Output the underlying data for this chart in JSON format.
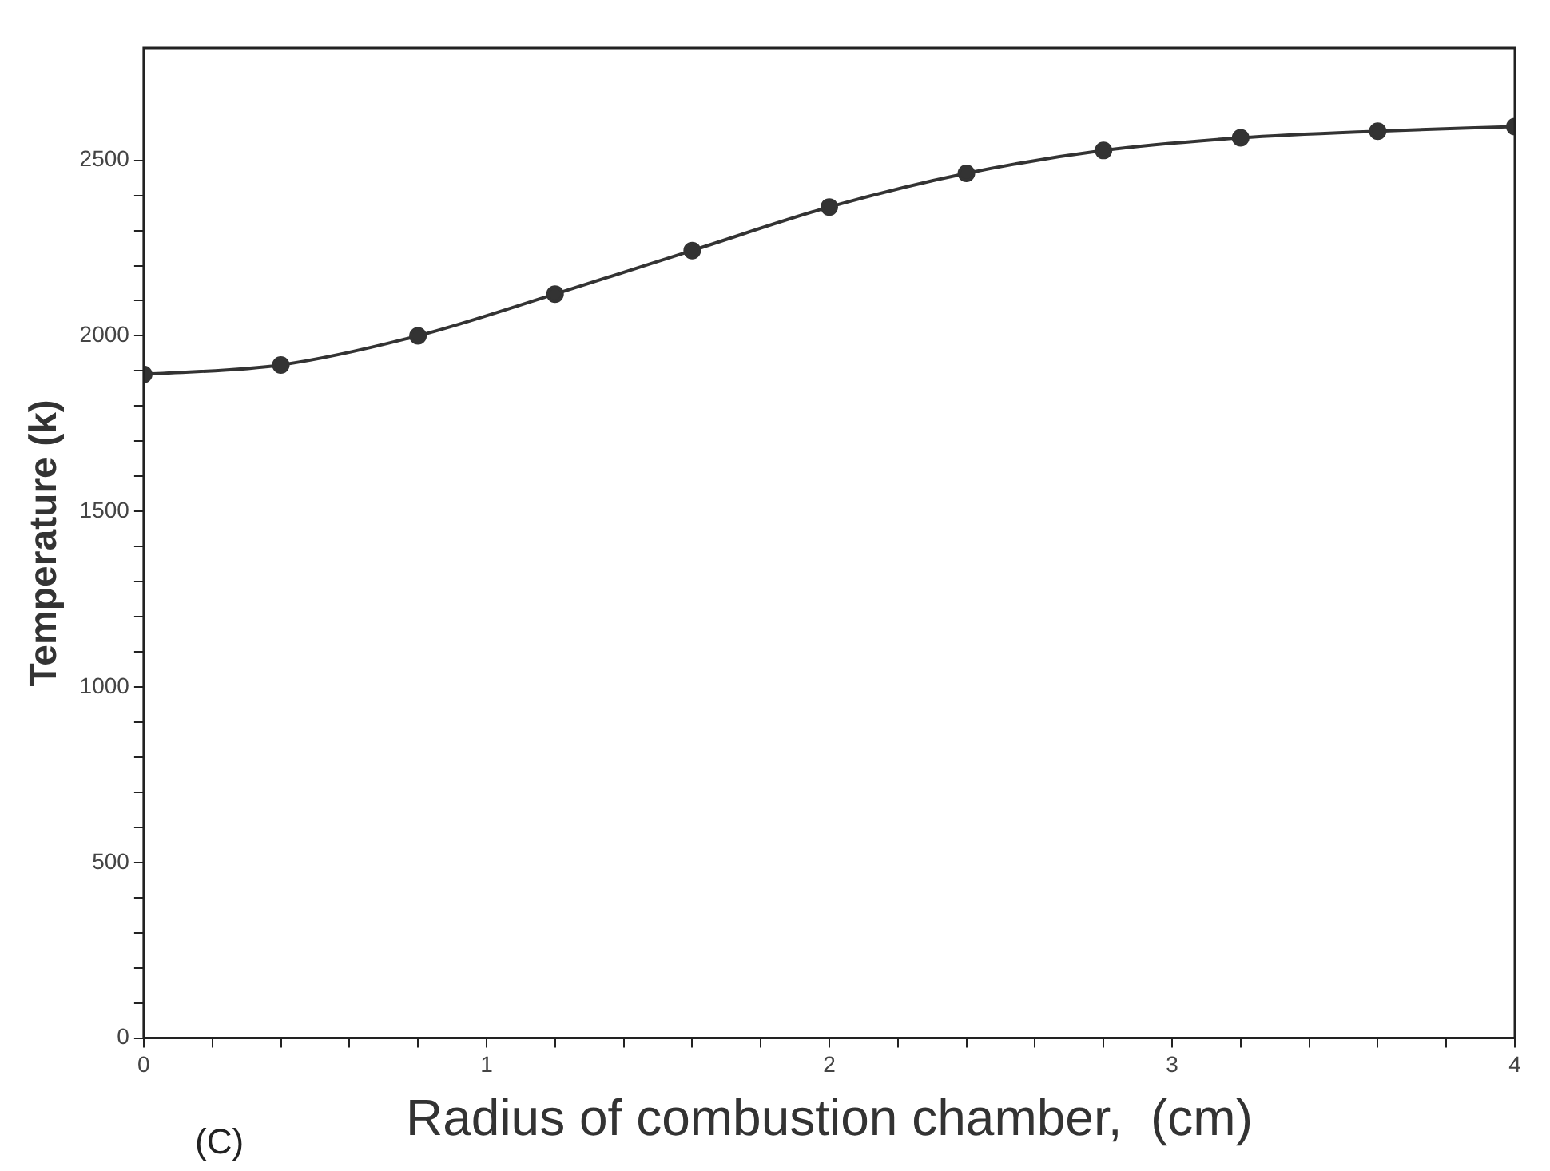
{
  "chart_data": {
    "type": "line",
    "xlabel": "Radius of combustion chamber,  (cm)",
    "ylabel": "Temperature (k)",
    "annotations": [
      "(C)"
    ],
    "x": [
      0,
      0.4,
      0.8,
      1.2,
      1.6,
      2.0,
      2.4,
      2.8,
      3.2,
      3.6,
      4.0
    ],
    "series": [
      {
        "color": "#333333",
        "values": [
          1890,
          1917,
          2000,
          2119,
          2243,
          2367,
          2463,
          2528,
          2564,
          2583,
          2596
        ]
      }
    ],
    "xlim": [
      0,
      4
    ],
    "ylim": [
      0,
      2820
    ],
    "xticks": [
      0,
      {
        "value": 0.2,
        "label": null
      },
      {
        "value": 0.4,
        "label": null
      },
      {
        "value": 0.6,
        "label": null
      },
      {
        "value": 0.8,
        "label": null
      },
      1,
      {
        "value": 1.2,
        "label": null
      },
      {
        "value": 1.4,
        "label": null
      },
      {
        "value": 1.6,
        "label": null
      },
      {
        "value": 1.8,
        "label": null
      },
      2,
      {
        "value": 2.2,
        "label": null
      },
      {
        "value": 2.4,
        "label": null
      },
      {
        "value": 2.6,
        "label": null
      },
      {
        "value": 2.8,
        "label": null
      },
      3,
      {
        "value": 3.2,
        "label": null
      },
      {
        "value": 3.4,
        "label": null
      },
      {
        "value": 3.6,
        "label": null
      },
      {
        "value": 3.8,
        "label": null
      },
      4
    ],
    "yticks": [
      0,
      {
        "value": 100,
        "label": null
      },
      {
        "value": 200,
        "label": null
      },
      {
        "value": 300,
        "label": null
      },
      {
        "value": 400,
        "label": null
      },
      500,
      {
        "value": 600,
        "label": null
      },
      {
        "value": 700,
        "label": null
      },
      {
        "value": 800,
        "label": null
      },
      {
        "value": 900,
        "label": null
      },
      1000,
      {
        "value": 1100,
        "label": null
      },
      {
        "value": 1200,
        "label": null
      },
      {
        "value": 1300,
        "label": null
      },
      {
        "value": 1400,
        "label": null
      },
      1500,
      {
        "value": 1600,
        "label": null
      },
      {
        "value": 1700,
        "label": null
      },
      {
        "value": 1800,
        "label": null
      },
      {
        "value": 1900,
        "label": null
      },
      2000,
      {
        "value": 2100,
        "label": null
      },
      {
        "value": 2200,
        "label": null
      },
      {
        "value": 2300,
        "label": null
      },
      {
        "value": 2400,
        "label": null
      },
      2500
    ],
    "grid": false,
    "legend": false,
    "marker": "circle",
    "line_style": "solid"
  }
}
